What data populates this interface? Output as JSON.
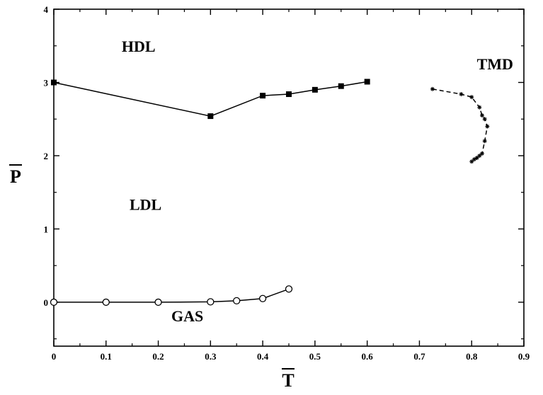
{
  "chart_data": {
    "type": "line",
    "xlabel": "T",
    "ylabel": "P",
    "xlim": [
      0,
      0.9
    ],
    "ylim": [
      -0.6,
      4
    ],
    "x_ticks": [
      "0",
      "0.1",
      "0.2",
      "0.3",
      "0.4",
      "0.5",
      "0.6",
      "0.7",
      "0.8",
      "0.9"
    ],
    "y_ticks": [
      "0",
      "1",
      "2",
      "3",
      "4"
    ],
    "grid": false,
    "series": [
      {
        "marker": "square",
        "line": "solid",
        "points": [
          [
            0,
            3.0
          ],
          [
            0.3,
            2.54
          ],
          [
            0.4,
            2.82
          ],
          [
            0.45,
            2.84
          ],
          [
            0.5,
            2.9
          ],
          [
            0.55,
            2.95
          ],
          [
            0.6,
            3.01
          ]
        ]
      },
      {
        "marker": "circle",
        "line": "solid",
        "points": [
          [
            0,
            0
          ],
          [
            0.1,
            0
          ],
          [
            0.2,
            0
          ],
          [
            0.3,
            0.005
          ],
          [
            0.35,
            0.02
          ],
          [
            0.4,
            0.05
          ],
          [
            0.45,
            0.18
          ]
        ]
      },
      {
        "marker": "star",
        "line": "dashed",
        "points": [
          [
            0.725,
            2.91
          ],
          [
            0.78,
            2.84
          ],
          [
            0.8,
            2.8
          ],
          [
            0.815,
            2.66
          ],
          [
            0.82,
            2.55
          ],
          [
            0.825,
            2.5
          ],
          [
            0.83,
            2.4
          ],
          [
            0.825,
            2.2
          ],
          [
            0.82,
            2.03
          ],
          [
            0.815,
            2.0
          ],
          [
            0.81,
            1.97
          ],
          [
            0.805,
            1.95
          ],
          [
            0.8,
            1.92
          ]
        ]
      }
    ],
    "annotations": [
      {
        "text": "HDL",
        "x": 0.13,
        "y": 3.42
      },
      {
        "text": "TMD",
        "x": 0.81,
        "y": 3.18
      },
      {
        "text": "LDL",
        "x": 0.145,
        "y": 1.26
      },
      {
        "text": "GAS",
        "x": 0.225,
        "y": -0.26
      }
    ]
  }
}
